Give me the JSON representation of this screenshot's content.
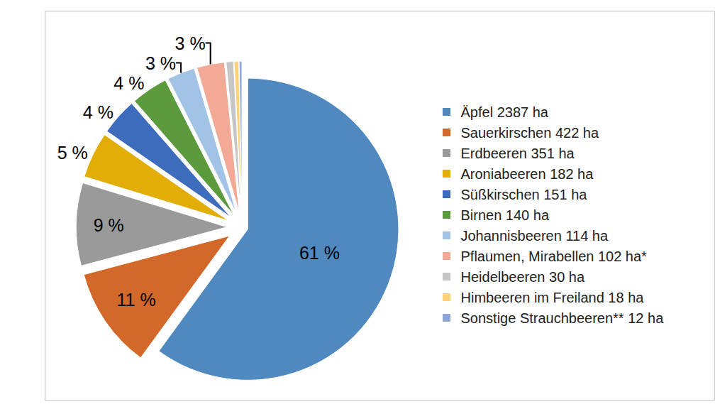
{
  "chart_data": {
    "type": "pie",
    "categories": [
      "Äpfel 2387 ha",
      "Sauerkirschen 422 ha",
      "Erdbeeren 351 ha",
      "Aroniabeeren 182 ha",
      "Süßkirschen 151 ha",
      "Birnen 140 ha",
      "Johannisbeeren 114 ha",
      "Pflaumen, Mirabellen 102 ha*",
      "Heidelbeeren 30 ha",
      "Himbeeren im Freiland 18 ha",
      "Sonstige Strauchbeeren** 12 ha"
    ],
    "values": [
      61,
      11,
      9,
      5,
      4,
      4,
      3,
      3,
      0.8,
      0.5,
      0.3
    ],
    "value_labels": [
      "61 %",
      "11 %",
      "9 %",
      "5 %",
      "4 %",
      "4 %",
      "3 %",
      "3 %",
      null,
      null,
      null
    ],
    "colors": [
      "#4f89c0",
      "#d2692a",
      "#9a9a9a",
      "#e3ad07",
      "#3e6cbd",
      "#5c9a3e",
      "#a3c3e6",
      "#f2a996",
      "#c6c6c6",
      "#fdd27a",
      "#8ea7d8"
    ],
    "data_labels": true,
    "legend": "right"
  }
}
